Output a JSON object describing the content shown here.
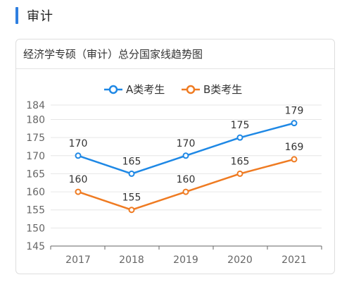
{
  "header": {
    "title": "审计"
  },
  "card": {
    "title": "经济学专硕（审计）总分国家线趋势图"
  },
  "colors": {
    "accent": "#2f7fe0",
    "series_a": "#1e88e5",
    "series_b": "#ef7b22",
    "grid": "#e6e6e6",
    "axis": "#666666"
  },
  "chart_data": {
    "type": "line",
    "categories": [
      "2017",
      "2018",
      "2019",
      "2020",
      "2021"
    ],
    "series": [
      {
        "name": "A类考生",
        "values": [
          170,
          165,
          170,
          175,
          179
        ]
      },
      {
        "name": "B类考生",
        "values": [
          160,
          155,
          160,
          165,
          169
        ]
      }
    ],
    "yticks": [
      145,
      150,
      155,
      160,
      165,
      170,
      175,
      180,
      184
    ],
    "ylim": [
      145,
      184
    ],
    "xlabel": "",
    "ylabel": "",
    "grid": true,
    "legend_position": "top-center",
    "data_labels": true
  }
}
